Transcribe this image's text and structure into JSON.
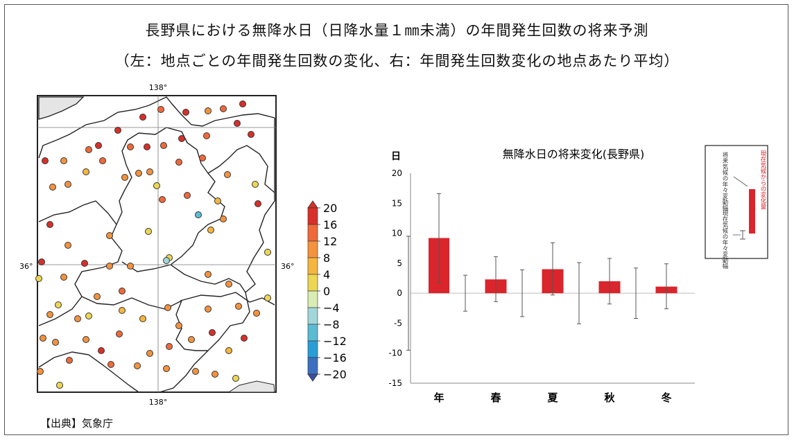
{
  "title_line1": "長野県における無降水日（日降水量１㎜未満）の年間発生回数の将来予測",
  "title_line2": "（左：地点ごとの年間発生回数の変化、右：年間発生回数変化の地点あたり平均）",
  "source": "【出典】気象庁",
  "map": {
    "lon_label": "138°",
    "lat_label": "36°",
    "colorbar_ticks": [
      "20",
      "16",
      "12",
      "8",
      "4",
      "0",
      "−4",
      "−8",
      "−12",
      "−16",
      "−20"
    ],
    "colors": [
      "#d7302a",
      "#ee6a3a",
      "#f3923f",
      "#f5b640",
      "#ecd654",
      "#d9ecb4",
      "#a3d6d8",
      "#5bbbd2",
      "#2a9dd6",
      "#3c6fc0",
      "#3a4fa3"
    ]
  },
  "chart_data": {
    "type": "bar",
    "title": "無降水日の将来変化(長野県)",
    "ylabel": "日",
    "categories": [
      "年",
      "春",
      "夏",
      "秋",
      "冬"
    ],
    "values": [
      9.2,
      2.3,
      4.0,
      2.0,
      1.1
    ],
    "change_error": [
      [
        1.8,
        16.6
      ],
      [
        -1.4,
        6.1
      ],
      [
        -0.3,
        8.4
      ],
      [
        -1.8,
        5.8
      ],
      [
        -2.6,
        4.9
      ]
    ],
    "present_variability": [
      [
        -9.5,
        9.5
      ],
      [
        -3.0,
        3.0
      ],
      [
        -3.9,
        3.9
      ],
      [
        -5.1,
        5.1
      ],
      [
        -4.2,
        4.2
      ]
    ],
    "ylim": [
      -15,
      20
    ],
    "yticks": [
      20,
      15,
      10,
      5,
      0,
      -5,
      -10,
      -15
    ],
    "bar_color": "#d9252b",
    "legend": {
      "change": "現在気候からの変化量",
      "future_var": "将来気候の年々変動幅",
      "present_var": "現在気候の年々変動幅"
    }
  }
}
